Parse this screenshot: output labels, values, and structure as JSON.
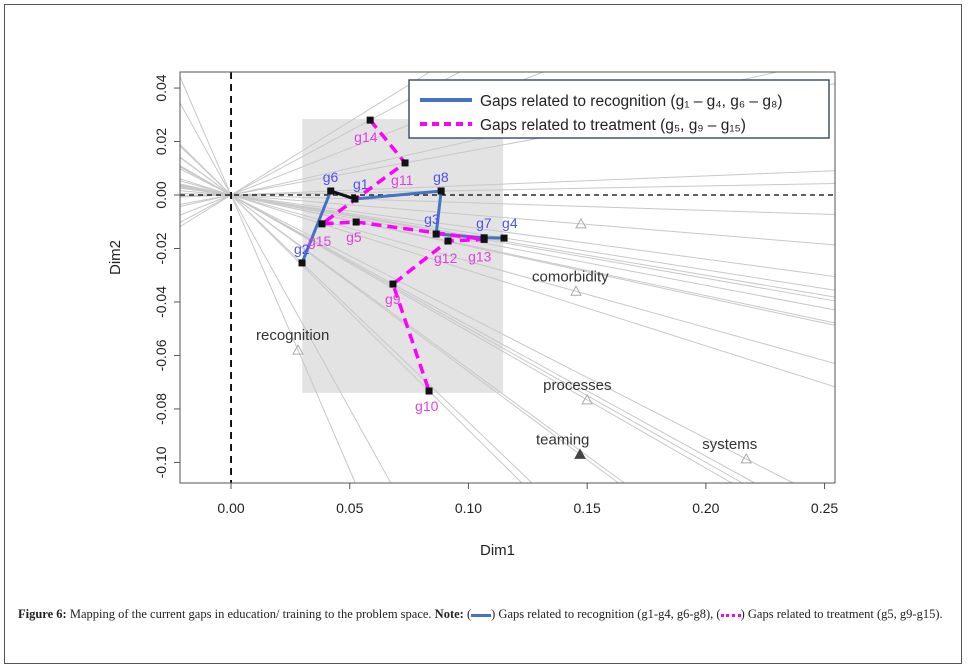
{
  "chart_data": {
    "type": "scatter",
    "xlabel": "Dim1",
    "ylabel": "Dim2",
    "xlim": [
      -0.0215,
      0.2544
    ],
    "ylim": [
      -0.1077,
      0.046
    ],
    "xticks": [
      0.0,
      0.05,
      0.1,
      0.15,
      0.2,
      0.25
    ],
    "xtick_labels": [
      "0.00",
      "0.05",
      "0.10",
      "0.15",
      "0.20",
      "0.25"
    ],
    "yticks": [
      0.04,
      0.02,
      0.0,
      -0.02,
      -0.04,
      -0.06,
      -0.08,
      -0.1
    ],
    "ytick_labels": [
      "0.04",
      "0.02",
      "0.00",
      "-0.02",
      "-0.04",
      "-0.06",
      "-0.08",
      "-0.10"
    ],
    "grid": false,
    "reference_lines": {
      "x": 0,
      "y": 0
    },
    "highlight_region": {
      "x": [
        0.03,
        0.1146
      ],
      "y": [
        -0.074,
        0.0284
      ]
    },
    "gaps": [
      {
        "label": "g1",
        "x": 0.0522,
        "y": -0.0015,
        "group": "recognition"
      },
      {
        "label": "g2",
        "x": 0.0299,
        "y": -0.0254,
        "group": "recognition"
      },
      {
        "label": "g3",
        "x": 0.0864,
        "y": -0.0146,
        "group": "recognition"
      },
      {
        "label": "g4",
        "x": 0.115,
        "y": -0.0161,
        "group": "recognition"
      },
      {
        "label": "g5",
        "x": 0.0527,
        "y": -0.0101,
        "group": "treatment"
      },
      {
        "label": "g6",
        "x": 0.042,
        "y": 0.0015,
        "group": "recognition"
      },
      {
        "label": "g7",
        "x": 0.1066,
        "y": -0.016,
        "group": "recognition"
      },
      {
        "label": "g8",
        "x": 0.0885,
        "y": 0.0015,
        "group": "recognition"
      },
      {
        "label": "g9",
        "x": 0.0682,
        "y": -0.0333,
        "group": "treatment"
      },
      {
        "label": "g10",
        "x": 0.0834,
        "y": -0.0733,
        "group": "treatment"
      },
      {
        "label": "g11",
        "x": 0.0733,
        "y": 0.012,
        "group": "treatment"
      },
      {
        "label": "g12",
        "x": 0.0914,
        "y": -0.0172,
        "group": "treatment"
      },
      {
        "label": "g13",
        "x": 0.1066,
        "y": -0.0166,
        "group": "treatment"
      },
      {
        "label": "g14",
        "x": 0.0586,
        "y": 0.028,
        "group": "treatment"
      },
      {
        "label": "g15",
        "x": 0.0383,
        "y": -0.0108,
        "group": "treatment"
      }
    ],
    "recognition_path": [
      "g2",
      "g6",
      "g1",
      "g8",
      "g3",
      "g7",
      "g4"
    ],
    "treatment_path": [
      "g14",
      "g11",
      "g15",
      "g5",
      "g13",
      "g12",
      "g9",
      "g10"
    ],
    "problem_space": [
      {
        "label": "recognition",
        "x": 0.0282,
        "y": -0.058,
        "filled": false
      },
      {
        "label": "comorbidity",
        "x": 0.1453,
        "y": -0.036,
        "filled": false
      },
      {
        "label": "processes",
        "x": 0.15,
        "y": -0.0766,
        "filled": false
      },
      {
        "label": "teaming",
        "x": 0.147,
        "y": -0.097,
        "filled": true
      },
      {
        "label": "systems",
        "x": 0.217,
        "y": -0.0987,
        "filled": false
      },
      {
        "label": "",
        "x": 0.1474,
        "y": -0.0108,
        "filled": false
      }
    ],
    "extra_ray_slopes": [
      0.55,
      0.35,
      0.2,
      -0.12,
      -0.5,
      -0.65,
      -1.6
    ],
    "legend": {
      "placement": "top-right",
      "entries": [
        {
          "label": "Gaps related to recognition (g₁ – g₄, g₆ – g₈)",
          "style": "solid"
        },
        {
          "label": "Gaps related to treatment (g₅, g₉ – g₁₅)",
          "style": "dotted"
        }
      ]
    }
  },
  "colors": {
    "recognition": "#4472c4",
    "treatment": "#ff00ff",
    "label_recognition": "#5050f0",
    "label_treatment": "#e040e0"
  },
  "caption": {
    "figure": "Figure 6:",
    "text": " Mapping of the current gaps in education/ training to the problem space. ",
    "note": "Note:",
    "part1": " Gaps related to recognition (g1-g4, g6-g8), ",
    "part2": " Gaps related to treatment (g5, g9-g15)."
  }
}
